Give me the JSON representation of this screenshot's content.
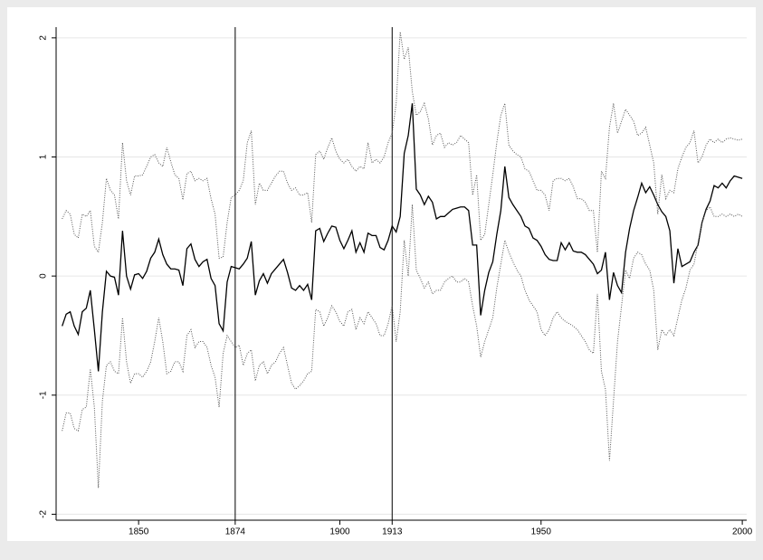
{
  "chart_data": {
    "type": "line",
    "x": [
      1831,
      1832,
      1833,
      1834,
      1835,
      1836,
      1837,
      1838,
      1839,
      1840,
      1841,
      1842,
      1843,
      1844,
      1845,
      1846,
      1847,
      1848,
      1849,
      1850,
      1851,
      1852,
      1853,
      1854,
      1855,
      1856,
      1857,
      1858,
      1859,
      1860,
      1861,
      1862,
      1863,
      1864,
      1865,
      1866,
      1867,
      1868,
      1869,
      1870,
      1871,
      1872,
      1873,
      1874,
      1875,
      1876,
      1877,
      1878,
      1879,
      1880,
      1881,
      1882,
      1883,
      1884,
      1885,
      1886,
      1887,
      1888,
      1889,
      1890,
      1891,
      1892,
      1893,
      1894,
      1895,
      1896,
      1897,
      1898,
      1899,
      1900,
      1901,
      1902,
      1903,
      1904,
      1905,
      1906,
      1907,
      1908,
      1909,
      1910,
      1911,
      1912,
      1913,
      1914,
      1915,
      1916,
      1917,
      1918,
      1919,
      1920,
      1921,
      1922,
      1923,
      1924,
      1925,
      1926,
      1927,
      1928,
      1929,
      1930,
      1931,
      1932,
      1933,
      1934,
      1935,
      1936,
      1937,
      1938,
      1939,
      1940,
      1941,
      1942,
      1943,
      1944,
      1945,
      1946,
      1947,
      1948,
      1949,
      1950,
      1951,
      1952,
      1953,
      1954,
      1955,
      1956,
      1957,
      1958,
      1959,
      1960,
      1961,
      1962,
      1963,
      1964,
      1965,
      1966,
      1967,
      1968,
      1969,
      1970,
      1971,
      1972,
      1973,
      1974,
      1975,
      1976,
      1977,
      1978,
      1979,
      1980,
      1981,
      1982,
      1983,
      1984,
      1985,
      1986,
      1987,
      1988,
      1989,
      1990,
      1991,
      1992,
      1993,
      1994,
      1995,
      1996,
      1997,
      1998,
      1999,
      2000
    ],
    "series": [
      {
        "color": "#000000",
        "dash": "solid",
        "values": [
          -0.42,
          -0.32,
          -0.3,
          -0.42,
          -0.49,
          -0.3,
          -0.27,
          -0.12,
          -0.45,
          -0.8,
          -0.3,
          0.04,
          0.0,
          -0.01,
          -0.16,
          0.38,
          0.0,
          -0.11,
          0.01,
          0.02,
          -0.02,
          0.04,
          0.15,
          0.2,
          0.31,
          0.18,
          0.1,
          0.06,
          0.06,
          0.05,
          -0.08,
          0.23,
          0.27,
          0.14,
          0.08,
          0.12,
          0.14,
          -0.02,
          -0.08,
          -0.4,
          -0.46,
          -0.05,
          0.08,
          0.07,
          0.06,
          0.1,
          0.15,
          0.29,
          -0.16,
          -0.04,
          0.02,
          -0.06,
          0.02,
          0.06,
          0.1,
          0.14,
          0.03,
          -0.1,
          -0.12,
          -0.08,
          -0.12,
          -0.07,
          -0.2,
          0.38,
          0.4,
          0.29,
          0.36,
          0.42,
          0.41,
          0.3,
          0.23,
          0.3,
          0.38,
          0.2,
          0.28,
          0.2,
          0.36,
          0.34,
          0.34,
          0.24,
          0.22,
          0.3,
          0.42,
          0.37,
          0.5,
          1.03,
          1.18,
          1.45,
          0.73,
          0.68,
          0.6,
          0.67,
          0.62,
          0.48,
          0.5,
          0.5,
          0.53,
          0.56,
          0.57,
          0.58,
          0.58,
          0.55,
          0.26,
          0.26,
          -0.33,
          -0.12,
          0.03,
          0.12,
          0.35,
          0.55,
          0.92,
          0.66,
          0.6,
          0.55,
          0.5,
          0.42,
          0.4,
          0.32,
          0.3,
          0.25,
          0.18,
          0.14,
          0.13,
          0.13,
          0.28,
          0.22,
          0.28,
          0.21,
          0.2,
          0.2,
          0.18,
          0.14,
          0.1,
          0.02,
          0.05,
          0.2,
          -0.2,
          0.03,
          -0.08,
          -0.14,
          0.2,
          0.4,
          0.55,
          0.66,
          0.78,
          0.7,
          0.75,
          0.68,
          0.6,
          0.54,
          0.5,
          0.38,
          -0.06,
          0.23,
          0.08,
          0.1,
          0.12,
          0.2,
          0.26,
          0.45,
          0.56,
          0.63,
          0.76,
          0.74,
          0.78,
          0.74,
          0.8,
          0.84,
          0.83,
          0.82
        ]
      },
      {
        "color": "#555555",
        "dash": "dotted",
        "values": [
          0.48,
          0.55,
          0.52,
          0.35,
          0.32,
          0.52,
          0.5,
          0.55,
          0.25,
          0.2,
          0.45,
          0.82,
          0.72,
          0.68,
          0.48,
          1.12,
          0.8,
          0.68,
          0.84,
          0.84,
          0.85,
          0.92,
          1.0,
          1.02,
          0.95,
          0.92,
          1.08,
          0.96,
          0.85,
          0.82,
          0.64,
          0.86,
          0.88,
          0.8,
          0.82,
          0.8,
          0.82,
          0.65,
          0.52,
          0.15,
          0.16,
          0.45,
          0.66,
          0.68,
          0.72,
          0.8,
          1.12,
          1.22,
          0.6,
          0.78,
          0.72,
          0.72,
          0.78,
          0.84,
          0.88,
          0.88,
          0.78,
          0.72,
          0.74,
          0.68,
          0.68,
          0.7,
          0.45,
          1.02,
          1.05,
          0.98,
          1.08,
          1.16,
          1.05,
          0.98,
          0.95,
          0.98,
          0.92,
          0.88,
          0.92,
          0.9,
          1.12,
          0.95,
          0.98,
          0.95,
          1.0,
          1.12,
          1.2,
          1.45,
          2.05,
          1.82,
          1.92,
          1.55,
          1.35,
          1.38,
          1.45,
          1.32,
          1.1,
          1.18,
          1.2,
          1.08,
          1.12,
          1.1,
          1.12,
          1.18,
          1.15,
          1.12,
          0.68,
          0.85,
          0.3,
          0.35,
          0.6,
          0.85,
          1.12,
          1.35,
          1.45,
          1.1,
          1.05,
          1.02,
          1.0,
          0.9,
          0.88,
          0.8,
          0.72,
          0.72,
          0.68,
          0.55,
          0.8,
          0.82,
          0.82,
          0.8,
          0.82,
          0.75,
          0.65,
          0.65,
          0.62,
          0.55,
          0.55,
          0.2,
          0.88,
          0.82,
          1.25,
          1.45,
          1.2,
          1.3,
          1.4,
          1.35,
          1.3,
          1.18,
          1.2,
          1.25,
          1.1,
          0.95,
          0.52,
          0.85,
          0.65,
          0.72,
          0.7,
          0.9,
          1.0,
          1.08,
          1.12,
          1.22,
          0.95,
          1.0,
          1.1,
          1.15,
          1.12,
          1.15,
          1.12,
          1.15,
          1.16,
          1.15,
          1.14,
          1.15
        ]
      },
      {
        "color": "#555555",
        "dash": "dotted",
        "values": [
          -1.3,
          -1.15,
          -1.15,
          -1.28,
          -1.3,
          -1.12,
          -1.1,
          -0.78,
          -1.1,
          -1.78,
          -1.05,
          -0.75,
          -0.72,
          -0.8,
          -0.82,
          -0.35,
          -0.72,
          -0.9,
          -0.82,
          -0.82,
          -0.85,
          -0.8,
          -0.72,
          -0.55,
          -0.35,
          -0.55,
          -0.82,
          -0.8,
          -0.72,
          -0.72,
          -0.8,
          -0.5,
          -0.45,
          -0.6,
          -0.55,
          -0.55,
          -0.6,
          -0.75,
          -0.85,
          -1.1,
          -0.65,
          -0.5,
          -0.55,
          -0.6,
          -0.58,
          -0.75,
          -0.65,
          -0.62,
          -0.88,
          -0.75,
          -0.72,
          -0.82,
          -0.75,
          -0.72,
          -0.65,
          -0.6,
          -0.75,
          -0.9,
          -0.95,
          -0.92,
          -0.88,
          -0.82,
          -0.8,
          -0.28,
          -0.3,
          -0.42,
          -0.35,
          -0.25,
          -0.3,
          -0.38,
          -0.42,
          -0.3,
          -0.28,
          -0.45,
          -0.35,
          -0.4,
          -0.3,
          -0.35,
          -0.4,
          -0.5,
          -0.5,
          -0.4,
          -0.25,
          -0.55,
          -0.3,
          0.3,
          0.0,
          0.6,
          0.05,
          -0.02,
          -0.1,
          -0.05,
          -0.15,
          -0.12,
          -0.12,
          -0.05,
          -0.02,
          0.0,
          -0.05,
          -0.05,
          -0.02,
          -0.05,
          -0.25,
          -0.42,
          -0.68,
          -0.55,
          -0.45,
          -0.35,
          -0.1,
          0.1,
          0.3,
          0.2,
          0.12,
          0.05,
          0.0,
          -0.12,
          -0.2,
          -0.25,
          -0.3,
          -0.45,
          -0.5,
          -0.45,
          -0.35,
          -0.3,
          -0.35,
          -0.38,
          -0.4,
          -0.42,
          -0.45,
          -0.5,
          -0.55,
          -0.62,
          -0.65,
          -0.15,
          -0.8,
          -0.95,
          -1.55,
          -1.05,
          -0.55,
          -0.25,
          0.05,
          -0.02,
          0.15,
          0.2,
          0.18,
          0.1,
          0.05,
          -0.12,
          -0.62,
          -0.45,
          -0.5,
          -0.45,
          -0.5,
          -0.35,
          -0.2,
          -0.1,
          0.05,
          0.1,
          0.28,
          0.45,
          0.55,
          0.58,
          0.5,
          0.5,
          0.52,
          0.5,
          0.52,
          0.5,
          0.52,
          0.5
        ]
      }
    ],
    "xlim": [
      1829.5,
      2001.1
    ],
    "xticks": [
      1850,
      1874,
      1900,
      1913,
      1950,
      2000
    ],
    "ylim": [
      -2.05,
      2.09
    ],
    "yticks": [
      -2,
      -1,
      0,
      1,
      2
    ],
    "xlines": [
      1874,
      1913
    ],
    "grid": true
  }
}
